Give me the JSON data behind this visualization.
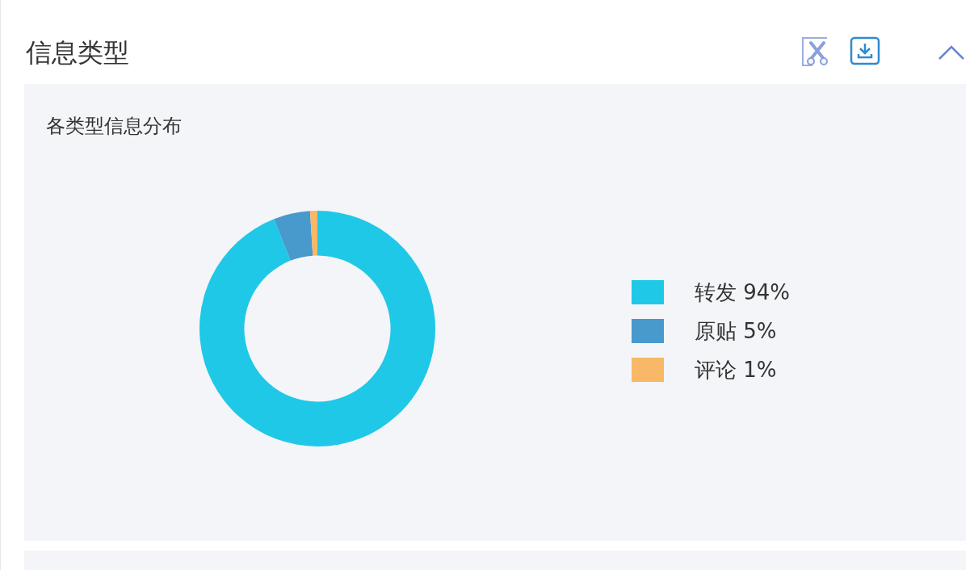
{
  "chart_data": {
    "type": "donut",
    "title": "信息类型",
    "subtitle": "各类型信息分布",
    "categories": [
      "转发",
      "原贴",
      "评论"
    ],
    "values": [
      94,
      5,
      1
    ],
    "value_labels": [
      "94%",
      "5%",
      "1%"
    ],
    "colors": [
      "#20c8e8",
      "#4899cc",
      "#f8b868"
    ],
    "legend": "right"
  }
}
